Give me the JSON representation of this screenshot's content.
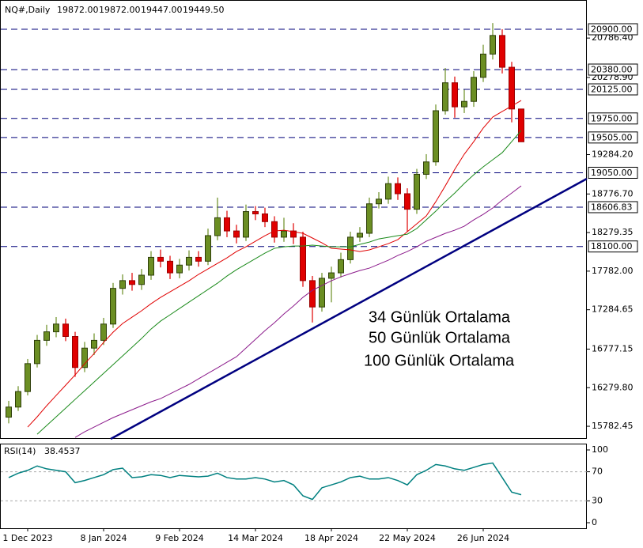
{
  "chart_data": {
    "type": "candlestick",
    "title": "NQ#,Daily",
    "last_bar": {
      "values": [
        19872,
        19872,
        19447,
        19449.5
      ],
      "value_labels": [
        "19872.00",
        "19872.00",
        "19447.00",
        "19449.50"
      ]
    },
    "categories": [
      null,
      null,
      "1 Dec 2023",
      null,
      null,
      null,
      null,
      null,
      null,
      null,
      "8 Jan 2024",
      null,
      null,
      null,
      null,
      null,
      null,
      null,
      "9 Feb 2024",
      null,
      null,
      null,
      null,
      null,
      null,
      null,
      "14 Mar 2024",
      null,
      null,
      null,
      null,
      null,
      null,
      null,
      "18 Apr 2024",
      null,
      null,
      null,
      null,
      null,
      null,
      null,
      "22 May 2024",
      null,
      null,
      null,
      null,
      null,
      null,
      null,
      "26 Jun 2024",
      null,
      null,
      null,
      null
    ],
    "open": [
      15900,
      16030,
      16230,
      16590,
      16890,
      17000,
      17100,
      16940,
      16540,
      16790,
      16890,
      17100,
      17560,
      17660,
      17610,
      17730,
      17960,
      17910,
      17760,
      17860,
      17960,
      17910,
      18240,
      18470,
      18300,
      18220,
      18550,
      18520,
      18420,
      18220,
      18300,
      18220,
      17660,
      17320,
      17690,
      17760,
      17930,
      18220,
      18270,
      18650,
      18710,
      18910,
      18780,
      18580,
      19030,
      19190,
      19850,
      20210,
      19900,
      19970,
      20280,
      20580,
      20820,
      20410,
      19872
    ],
    "high": [
      16110,
      16300,
      16650,
      16960,
      17090,
      17190,
      17170,
      17000,
      16870,
      16980,
      17180,
      17630,
      17740,
      17760,
      17810,
      18040,
      18060,
      17980,
      17940,
      18050,
      18040,
      18330,
      18730,
      18560,
      18380,
      18640,
      18620,
      18600,
      18490,
      18470,
      18400,
      18290,
      17720,
      17760,
      17840,
      18020,
      18290,
      18350,
      18730,
      18800,
      19000,
      18990,
      18850,
      19100,
      19290,
      19930,
      20400,
      20290,
      20120,
      20360,
      20700,
      20980,
      20900,
      20480,
      19872
    ],
    "low": [
      15820,
      15980,
      16180,
      16540,
      16820,
      16930,
      16880,
      16420,
      16480,
      16700,
      16830,
      17050,
      17480,
      17530,
      17540,
      17670,
      17830,
      17680,
      17690,
      17790,
      17840,
      17860,
      18180,
      18220,
      18140,
      18170,
      18440,
      18350,
      18150,
      18160,
      18130,
      17580,
      17120,
      17260,
      17380,
      17700,
      17880,
      18160,
      18220,
      18590,
      18650,
      18700,
      18290,
      18520,
      18970,
      19140,
      19800,
      19760,
      19820,
      19900,
      20220,
      20510,
      20330,
      19700,
      19447
    ],
    "close": [
      16030,
      16230,
      16590,
      16890,
      17000,
      17100,
      16940,
      16540,
      16790,
      16890,
      17100,
      17560,
      17660,
      17610,
      17730,
      17960,
      17910,
      17760,
      17860,
      17960,
      17910,
      18240,
      18470,
      18300,
      18220,
      18550,
      18520,
      18420,
      18220,
      18300,
      18220,
      17660,
      17320,
      17690,
      17760,
      17930,
      18220,
      18270,
      18650,
      18710,
      18910,
      18780,
      18580,
      19030,
      19190,
      19850,
      20210,
      19900,
      19970,
      20280,
      20580,
      20820,
      20410,
      19872,
      19449.5
    ],
    "up_color": "#6b8e23",
    "down_color": "#e00000",
    "ylim": [
      15620,
      21277
    ],
    "yticks": [
      {
        "value": 20786.4,
        "label": "20786.40"
      },
      {
        "value": 20278.9,
        "label": "20278.90"
      },
      {
        "value": 19284.2,
        "label": "19284.20"
      },
      {
        "value": 18776.7,
        "label": "18776.70"
      },
      {
        "value": 18279.35,
        "label": "18279.35"
      },
      {
        "value": 17782,
        "label": "17782.00"
      },
      {
        "value": 17284.65,
        "label": "17284.65"
      },
      {
        "value": 16777.15,
        "label": "16777.15"
      },
      {
        "value": 16279.8,
        "label": "16279.80"
      },
      {
        "value": 15782.45,
        "label": "15782.45"
      }
    ],
    "levels": {
      "color": "#00007a",
      "values": [
        20900,
        20380,
        20125,
        19750,
        19505,
        19050,
        18606.83,
        18100
      ],
      "value_labels": [
        "20900.00",
        "20380.00",
        "20125.00",
        "19750.00",
        "19505.00",
        "19050.00",
        "18606.83",
        "18100.00"
      ]
    },
    "series": [
      {
        "name": "34 Günlük Ortalama",
        "color": "#e00000",
        "values": [
          null,
          null,
          15772,
          15904,
          16047,
          16180,
          16312,
          16445,
          16588,
          16720,
          16863,
          16995,
          17107,
          17189,
          17271,
          17362,
          17444,
          17515,
          17587,
          17658,
          17740,
          17811,
          17882,
          17954,
          18035,
          18096,
          18168,
          18239,
          18300,
          18310,
          18290,
          18270,
          18209,
          18147,
          18076,
          18066,
          18056,
          18035,
          18056,
          18096,
          18137,
          18188,
          18290,
          18392,
          18494,
          18677,
          18881,
          19095,
          19289,
          19452,
          19626,
          19768,
          19840,
          19911,
          19982
        ]
      },
      {
        "name": "50 Günlük Ortalama",
        "color": "#1a8a1a",
        "values": [
          null,
          null,
          null,
          15680,
          15792,
          15904,
          16016,
          16129,
          16241,
          16353,
          16465,
          16577,
          16689,
          16801,
          16914,
          17036,
          17138,
          17219,
          17301,
          17383,
          17464,
          17546,
          17627,
          17719,
          17801,
          17872,
          17943,
          18015,
          18076,
          18096,
          18106,
          18106,
          18117,
          18106,
          18096,
          18096,
          18096,
          18127,
          18157,
          18198,
          18218,
          18239,
          18259,
          18331,
          18443,
          18555,
          18677,
          18789,
          18912,
          19024,
          19126,
          19218,
          19309,
          19452,
          19595
        ]
      },
      {
        "name": "100 Günlük Ortalama",
        "color": "#8b1a8b",
        "values": [
          null,
          null,
          null,
          null,
          null,
          null,
          null,
          15639,
          15711,
          15772,
          15833,
          15894,
          15945,
          15996,
          16047,
          16098,
          16139,
          16200,
          16261,
          16322,
          16394,
          16465,
          16536,
          16608,
          16679,
          16791,
          16903,
          17015,
          17117,
          17230,
          17332,
          17444,
          17535,
          17597,
          17658,
          17709,
          17750,
          17790,
          17821,
          17872,
          17923,
          17984,
          18035,
          18096,
          18168,
          18218,
          18269,
          18310,
          18361,
          18443,
          18514,
          18596,
          18698,
          18789,
          18881
        ]
      }
    ],
    "rsi": {
      "label": "RSI(14)",
      "color": "#008080",
      "ylim": [
        0,
        100
      ],
      "yticks": [
        0,
        30,
        70,
        100
      ],
      "values": [
        62,
        68,
        72,
        78,
        74,
        72,
        70,
        55,
        58,
        62,
        66,
        73,
        75,
        62,
        63,
        66,
        65,
        62,
        65,
        64,
        63,
        64,
        68,
        62,
        60,
        60,
        62,
        60,
        56,
        58,
        52,
        37,
        32,
        48,
        52,
        56,
        62,
        64,
        60,
        60,
        62,
        58,
        52,
        66,
        72,
        80,
        78,
        74,
        72,
        76,
        80,
        82,
        62,
        42,
        38.4537
      ]
    }
  }
}
